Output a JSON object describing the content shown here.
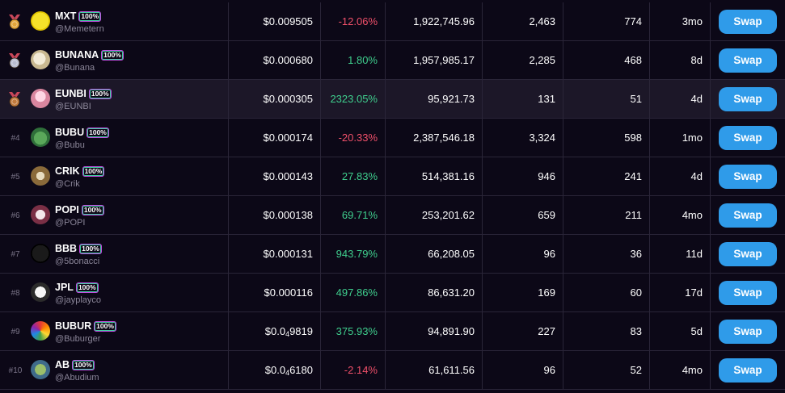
{
  "rows": [
    {
      "rank": "",
      "medal": "gold",
      "symbol": "MXT",
      "badge": "100%",
      "handle": "@Memetern",
      "price": "$0.009505",
      "change": "-12.06%",
      "dir": "neg",
      "volume": "1,922,745.96",
      "tx": "2,463",
      "holders": "774",
      "age": "3mo",
      "swap": "Swap",
      "avatar": "yellow",
      "icon": "meme-coin-icon"
    },
    {
      "rank": "",
      "medal": "silver",
      "symbol": "BUNANA",
      "badge": "100%",
      "handle": "@Bunana",
      "price": "$0.000680",
      "change": "1.80%",
      "dir": "pos",
      "volume": "1,957,985.17",
      "tx": "2,285",
      "holders": "468",
      "age": "8d",
      "swap": "Swap",
      "avatar": "cream",
      "icon": "banana-icon"
    },
    {
      "rank": "",
      "medal": "bronze",
      "symbol": "EUNBI",
      "badge": "100%",
      "handle": "@EUNBI",
      "price": "$0.000305",
      "change": "2323.05%",
      "dir": "pos",
      "volume": "95,921.73",
      "tx": "131",
      "holders": "51",
      "age": "4d",
      "swap": "Swap",
      "avatar": "pink",
      "icon": "character-icon"
    },
    {
      "rank": "#4",
      "medal": "",
      "symbol": "BUBU",
      "badge": "100%",
      "handle": "@Bubu",
      "price": "$0.000174",
      "change": "-20.33%",
      "dir": "neg",
      "volume": "2,387,546.18",
      "tx": "3,324",
      "holders": "598",
      "age": "1mo",
      "swap": "Swap",
      "avatar": "green",
      "icon": "frog-icon"
    },
    {
      "rank": "#5",
      "medal": "",
      "symbol": "CRIK",
      "badge": "100%",
      "handle": "@Crik",
      "price": "$0.000143",
      "change": "27.83%",
      "dir": "pos",
      "volume": "514,381.16",
      "tx": "946",
      "holders": "241",
      "age": "4d",
      "swap": "Swap",
      "avatar": "tan",
      "icon": "cricket-icon"
    },
    {
      "rank": "#6",
      "medal": "",
      "symbol": "POPI",
      "badge": "100%",
      "handle": "@POPI",
      "price": "$0.000138",
      "change": "69.71%",
      "dir": "pos",
      "volume": "253,201.62",
      "tx": "659",
      "holders": "211",
      "age": "4mo",
      "swap": "Swap",
      "avatar": "rose",
      "icon": "cat-icon"
    },
    {
      "rank": "#7",
      "medal": "",
      "symbol": "BBB",
      "badge": "100%",
      "handle": "@5bonacci",
      "price": "$0.000131",
      "change": "943.79%",
      "dir": "pos",
      "volume": "66,208.05",
      "tx": "96",
      "holders": "36",
      "age": "11d",
      "swap": "Swap",
      "avatar": "black",
      "icon": "shadow-icon"
    },
    {
      "rank": "#8",
      "medal": "",
      "symbol": "JPL",
      "badge": "100%",
      "handle": "@jayplayco",
      "price": "$0.000116",
      "change": "497.86%",
      "dir": "pos",
      "volume": "86,631.20",
      "tx": "169",
      "holders": "60",
      "age": "17d",
      "swap": "Swap",
      "avatar": "white",
      "icon": "penguin-icon"
    },
    {
      "rank": "#9",
      "medal": "",
      "symbol": "BUBUR",
      "badge": "100%",
      "handle": "@Buburger",
      "price_main": "$0.0",
      "price_sub": "4",
      "price_tail": "9819",
      "change": "375.93%",
      "dir": "pos",
      "volume": "94,891.90",
      "tx": "227",
      "holders": "83",
      "age": "5d",
      "swap": "Swap",
      "avatar": "rainbow",
      "icon": "burger-icon"
    },
    {
      "rank": "#10",
      "medal": "",
      "symbol": "AB",
      "badge": "100%",
      "handle": "@Abudium",
      "price_main": "$0.0",
      "price_sub": "4",
      "price_tail": "6180",
      "change": "-2.14%",
      "dir": "neg",
      "volume": "61,611.56",
      "tx": "96",
      "holders": "52",
      "age": "4mo",
      "swap": "Swap",
      "avatar": "olive",
      "icon": "lizard-icon"
    }
  ],
  "colors": {
    "neg": "#f0506a",
    "pos": "#3fcf8e",
    "swap": "#2f9be9",
    "gold": "#e0a43a",
    "silver": "#b8bcd0",
    "bronze": "#c07a3d"
  }
}
